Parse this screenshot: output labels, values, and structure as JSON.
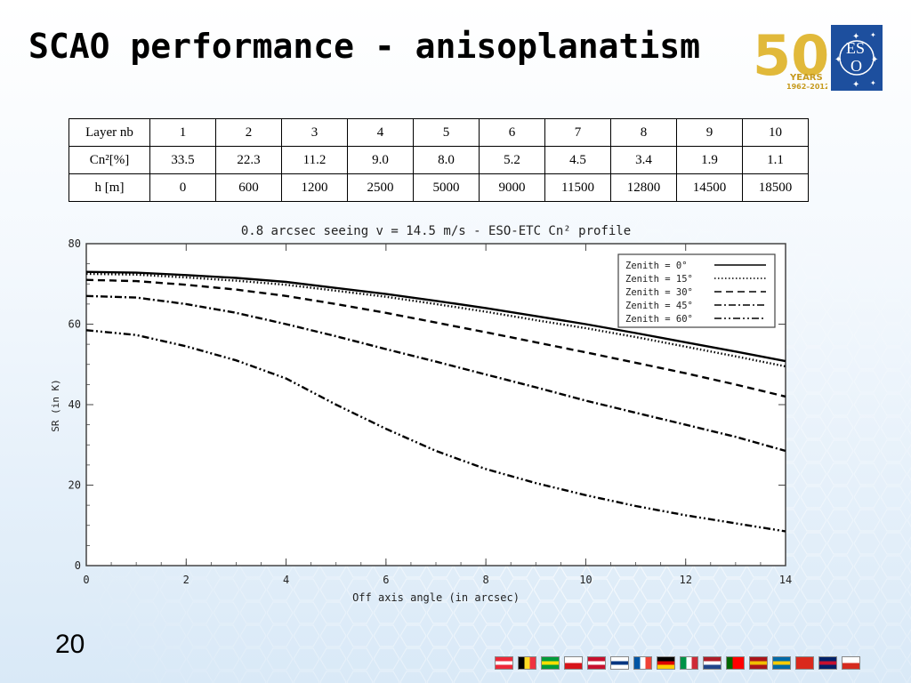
{
  "slide": {
    "title": "SCAO performance - anisoplanatism",
    "page_number": "20"
  },
  "logo": {
    "years_text": "YEARS",
    "date_range": "1962–2012",
    "fifty": "50",
    "eso_text": "ES",
    "eso_text2": "O"
  },
  "table": {
    "rows": [
      {
        "label": "Layer nb",
        "cells": [
          "1",
          "2",
          "3",
          "4",
          "5",
          "6",
          "7",
          "8",
          "9",
          "10"
        ]
      },
      {
        "label": "Cn²[%]",
        "cells": [
          "33.5",
          "22.3",
          "11.2",
          "9.0",
          "8.0",
          "5.2",
          "4.5",
          "3.4",
          "1.9",
          "1.1"
        ]
      },
      {
        "label": "h  [m]",
        "cells": [
          "0",
          "600",
          "1200",
          "2500",
          "5000",
          "9000",
          "11500",
          "12800",
          "14500",
          "18500"
        ]
      }
    ]
  },
  "flags": [
    {
      "name": "austria",
      "colors": [
        "#ed2939",
        "#ffffff",
        "#ed2939"
      ],
      "dir": "h"
    },
    {
      "name": "belgium",
      "colors": [
        "#000000",
        "#fdda24",
        "#ef3340"
      ],
      "dir": "v"
    },
    {
      "name": "brazil",
      "colors": [
        "#009c3b",
        "#ffdf00",
        "#009c3b"
      ],
      "dir": "h"
    },
    {
      "name": "czech",
      "colors": [
        "#ffffff",
        "#d7141a"
      ],
      "dir": "h"
    },
    {
      "name": "denmark",
      "colors": [
        "#c8102e",
        "#ffffff",
        "#c8102e"
      ],
      "dir": "h"
    },
    {
      "name": "finland",
      "colors": [
        "#ffffff",
        "#003580",
        "#ffffff"
      ],
      "dir": "h"
    },
    {
      "name": "france",
      "colors": [
        "#0055a4",
        "#ffffff",
        "#ef4135"
      ],
      "dir": "v"
    },
    {
      "name": "germany",
      "colors": [
        "#000000",
        "#dd0000",
        "#ffce00"
      ],
      "dir": "h"
    },
    {
      "name": "italy",
      "colors": [
        "#009246",
        "#ffffff",
        "#ce2b37"
      ],
      "dir": "v"
    },
    {
      "name": "netherlands",
      "colors": [
        "#ae1c28",
        "#ffffff",
        "#21468b"
      ],
      "dir": "h"
    },
    {
      "name": "portugal",
      "colors": [
        "#006600",
        "#ff0000",
        "#ff0000"
      ],
      "dir": "v"
    },
    {
      "name": "spain",
      "colors": [
        "#aa151b",
        "#f1bf00",
        "#aa151b"
      ],
      "dir": "h"
    },
    {
      "name": "sweden",
      "colors": [
        "#006aa7",
        "#fecc00",
        "#006aa7"
      ],
      "dir": "h"
    },
    {
      "name": "switzerland",
      "colors": [
        "#da291c",
        "#da291c",
        "#da291c"
      ],
      "dir": "h"
    },
    {
      "name": "uk",
      "colors": [
        "#012169",
        "#c8102e",
        "#012169"
      ],
      "dir": "h"
    },
    {
      "name": "chile",
      "colors": [
        "#ffffff",
        "#d52b1e"
      ],
      "dir": "h"
    }
  ],
  "chart_data": {
    "type": "line",
    "title": "0.8 arcsec seeing  v = 14.5 m/s - ESO-ETC Cn² profile",
    "xlabel": "Off axis angle (in arcsec)",
    "ylabel": "SR (in K)",
    "xlim": [
      0,
      14
    ],
    "ylim": [
      0,
      80
    ],
    "xticks": [
      "0",
      "2",
      "4",
      "6",
      "8",
      "10",
      "12",
      "14"
    ],
    "yticks": [
      "0",
      "20",
      "40",
      "60",
      "80"
    ],
    "legend_position": "top-right",
    "x": [
      0,
      1,
      2,
      3,
      4,
      5,
      6,
      7,
      8,
      9,
      10,
      11,
      12,
      13,
      14
    ],
    "series": [
      {
        "name": "Zenith =  0°",
        "dash": "solid",
        "values": [
          73,
          72.8,
          72.2,
          71.5,
          70.5,
          69,
          67.5,
          65.8,
          64,
          62,
          60,
          57.8,
          55.5,
          53.2,
          50.8
        ]
      },
      {
        "name": "Zenith = 15°",
        "dash": "dotted",
        "values": [
          72.5,
          72.3,
          71.6,
          70.8,
          69.8,
          68.3,
          66.8,
          65,
          63.1,
          61,
          59,
          56.8,
          54.4,
          52,
          49.5
        ]
      },
      {
        "name": "Zenith = 30°",
        "dash": "dashed",
        "values": [
          71,
          70.7,
          69.8,
          68.6,
          67,
          65,
          62.8,
          60.4,
          58,
          55.5,
          53,
          50.4,
          47.8,
          45,
          42
        ]
      },
      {
        "name": "Zenith = 45°",
        "dash": "dashdot",
        "values": [
          67,
          66.6,
          65,
          62.8,
          60,
          57,
          53.8,
          50.7,
          47.5,
          44.3,
          41,
          38,
          35,
          32,
          28.5
        ]
      },
      {
        "name": "Zenith = 60°",
        "dash": "dashdotdot",
        "values": [
          58.5,
          57.3,
          54.5,
          51,
          46.5,
          40,
          34,
          28.5,
          24,
          20.5,
          17.5,
          14.8,
          12.5,
          10.5,
          8.5
        ]
      }
    ]
  }
}
